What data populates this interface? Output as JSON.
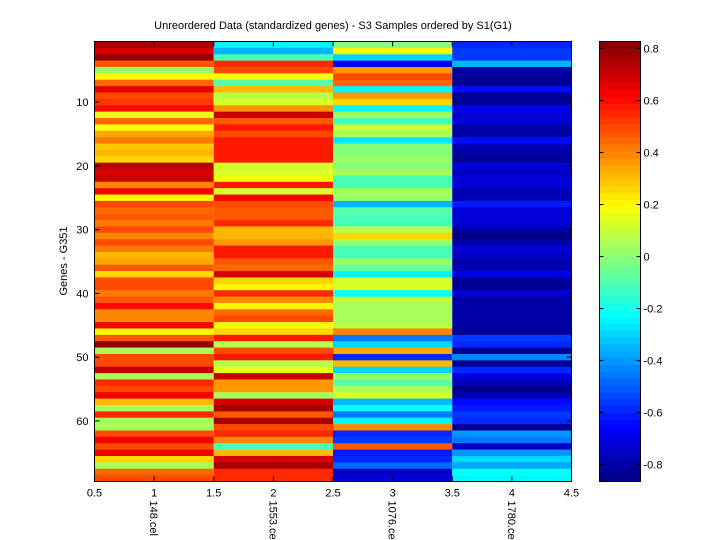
{
  "chart_data": {
    "type": "heatmap",
    "title": "Unreordered Data (standardized genes) - S3 Samples ordered by S1(G1)",
    "xlabel": "",
    "ylabel": "Genes - G351",
    "colormap": "jet",
    "clim": [
      -0.865,
      0.827
    ],
    "xlim": [
      0.5,
      4.5
    ],
    "ylim": [
      0.5,
      69.5
    ],
    "x_ticks": [
      "0.5",
      "1",
      "1.5",
      "2",
      "2.5",
      "3",
      "3.5",
      "4",
      "4.5"
    ],
    "x_tick_values": [
      0.5,
      1,
      1.5,
      2,
      2.5,
      3,
      3.5,
      4,
      4.5
    ],
    "y_ticks": [
      "10",
      "20",
      "30",
      "40",
      "50",
      "60"
    ],
    "y_tick_values": [
      10,
      20,
      30,
      40,
      50,
      60
    ],
    "sample_labels": [
      "148.cel",
      "1553.cel",
      "1076.cel",
      "1780.cel"
    ],
    "colorbar_ticks": [
      "0.8",
      "0.6",
      "0.4",
      "0.2",
      "0",
      "-0.2",
      "-0.4",
      "-0.6",
      "-0.8"
    ],
    "colorbar_tick_values": [
      0.8,
      0.6,
      0.4,
      0.2,
      0,
      -0.2,
      -0.4,
      -0.6,
      -0.8
    ],
    "columns": [
      [
        0.75,
        0.68,
        0.8,
        0.48,
        0.03,
        0.2,
        0.45,
        0.65,
        0.5,
        0.52,
        0.6,
        0.15,
        0.45,
        0.18,
        0.33,
        0.42,
        0.28,
        0.3,
        0.27,
        0.73,
        0.67,
        0.7,
        0.38,
        0.62,
        0.2,
        0.5,
        0.45,
        0.48,
        0.42,
        0.5,
        0.4,
        0.5,
        0.42,
        0.32,
        0.35,
        0.48,
        0.27,
        0.5,
        0.5,
        0.43,
        0.48,
        0.6,
        0.4,
        0.4,
        0.62,
        0.2,
        0.48,
        0.8,
        0.05,
        0.5,
        0.5,
        0.72,
        0.06,
        0.55,
        0.5,
        0.62,
        0.32,
        0.06,
        0.55,
        0.06,
        0.06,
        0.5,
        0.62,
        0.5,
        0.62,
        0.25,
        0.06,
        0.45,
        0.5
      ],
      [
        -0.25,
        -0.35,
        -0.1,
        0.55,
        0.5,
        0.18,
        -0.08,
        0.3,
        0.08,
        0.12,
        0.37,
        0.7,
        0.47,
        0.58,
        0.5,
        0.57,
        0.57,
        0.57,
        0.57,
        0.12,
        0.12,
        0.17,
        0.57,
        0.12,
        0.62,
        0.5,
        0.48,
        0.48,
        0.55,
        0.3,
        0.3,
        0.37,
        0.57,
        0.57,
        0.48,
        0.45,
        0.67,
        0.25,
        0.2,
        0.55,
        0.38,
        0.2,
        0.45,
        0.5,
        0.18,
        0.27,
        0.57,
        0.08,
        0.5,
        0.57,
        0.08,
        0.15,
        0.7,
        0.37,
        0.37,
        0.06,
        0.68,
        0.77,
        0.47,
        0.75,
        0.5,
        0.55,
        0.38,
        -0.1,
        0.3,
        0.67,
        0.77,
        0.55,
        0.55
      ],
      [
        0.0,
        0.2,
        -0.3,
        -0.7,
        0.37,
        0.5,
        0.45,
        -0.25,
        0.37,
        0.27,
        -0.25,
        0.02,
        -0.12,
        0.1,
        0.04,
        -0.27,
        0.0,
        0.0,
        0.02,
        0.0,
        0.06,
        -0.12,
        -0.12,
        0.06,
        0.02,
        -0.35,
        -0.08,
        -0.12,
        -0.12,
        0.08,
        0.25,
        0.02,
        -0.1,
        -0.1,
        0.02,
        -0.05,
        -0.25,
        0.12,
        0.12,
        -0.22,
        0.08,
        0.06,
        0.06,
        0.04,
        0.08,
        0.4,
        -0.45,
        -0.3,
        0.35,
        -0.6,
        0.3,
        -0.3,
        0.02,
        -0.08,
        0.06,
        0.12,
        -0.35,
        -0.23,
        -0.45,
        -0.25,
        0.38,
        -0.6,
        -0.55,
        0.48,
        -0.62,
        -0.6,
        -0.48,
        -0.75,
        -0.72
      ],
      [
        -0.6,
        -0.55,
        -0.55,
        -0.35,
        -0.8,
        -0.82,
        -0.82,
        -0.65,
        -0.82,
        -0.82,
        -0.7,
        -0.72,
        -0.72,
        -0.8,
        -0.8,
        -0.65,
        -0.78,
        -0.8,
        -0.82,
        -0.72,
        -0.75,
        -0.72,
        -0.72,
        -0.78,
        -0.78,
        -0.62,
        -0.72,
        -0.72,
        -0.72,
        -0.8,
        -0.85,
        -0.8,
        -0.72,
        -0.75,
        -0.8,
        -0.78,
        -0.68,
        -0.82,
        -0.82,
        -0.72,
        -0.8,
        -0.8,
        -0.8,
        -0.8,
        -0.8,
        -0.82,
        -0.55,
        -0.58,
        -0.82,
        -0.42,
        -0.82,
        -0.6,
        -0.7,
        -0.78,
        -0.85,
        -0.78,
        -0.65,
        -0.62,
        -0.55,
        -0.58,
        -0.82,
        -0.4,
        -0.45,
        -0.75,
        -0.4,
        -0.3,
        -0.38,
        -0.23,
        -0.25
      ]
    ]
  }
}
